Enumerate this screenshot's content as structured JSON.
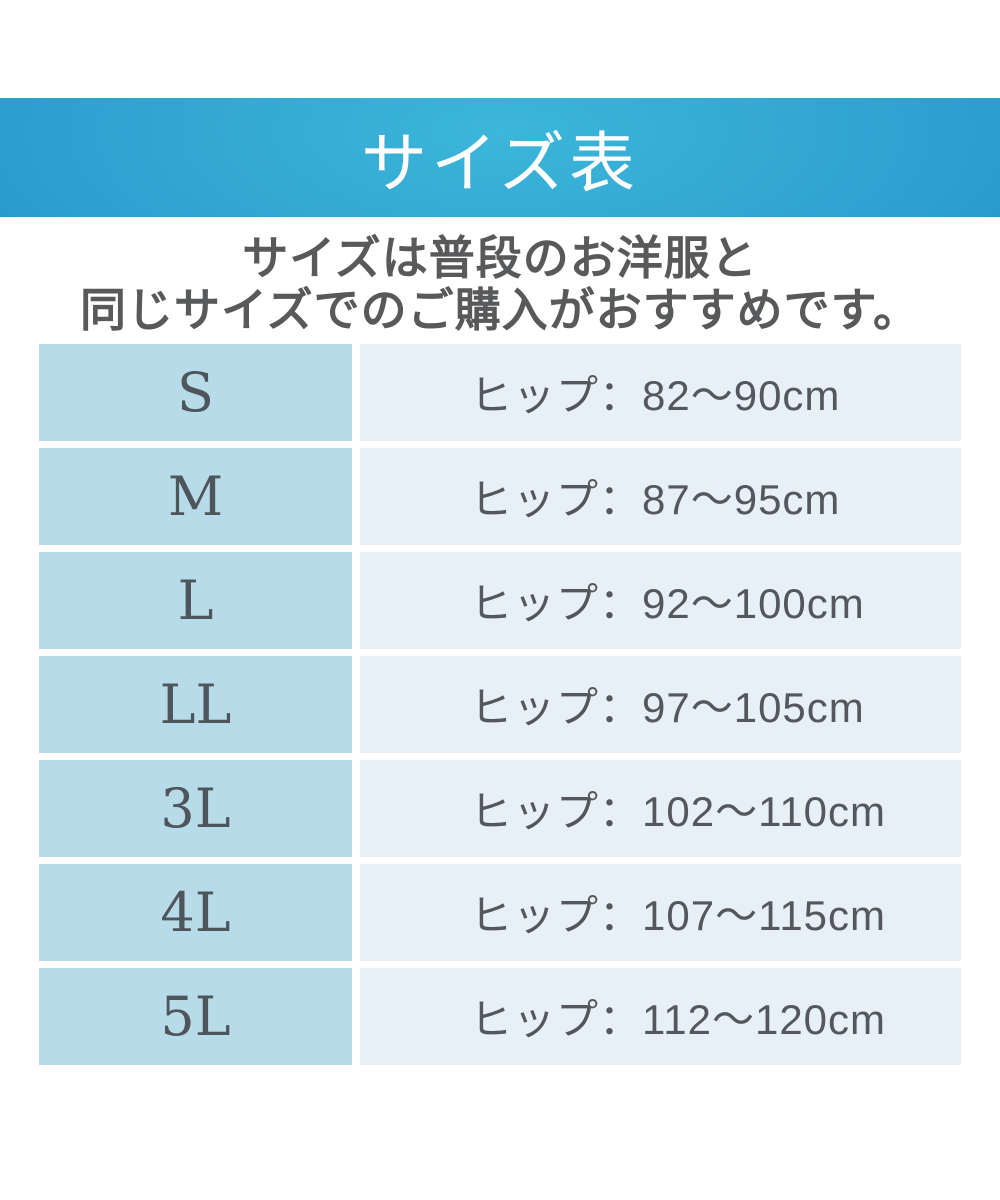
{
  "header": {
    "title": "サイズ表",
    "band_gradient_center": "#3cb6d9",
    "band_gradient_edge": "#2189c8",
    "text_color": "#ffffff"
  },
  "intro": {
    "line1": "サイズは普段のお洋服と",
    "line2": "同じサイズでのご購入がおすすめです。",
    "text_color": "#58595b"
  },
  "size_table": {
    "size_col_bg": "#b8dbe9",
    "value_col_bg": "#e7f0f7",
    "gutter_color": "#ffffff",
    "text_color": "#54585c",
    "rows": [
      {
        "size": "S",
        "hip": "ヒップ：82〜90cm"
      },
      {
        "size": "M",
        "hip": "ヒップ：87〜95cm"
      },
      {
        "size": "L",
        "hip": "ヒップ：92〜100cm"
      },
      {
        "size": "LL",
        "hip": "ヒップ：97〜105cm"
      },
      {
        "size": "3L",
        "hip": "ヒップ：102〜110cm"
      },
      {
        "size": "4L",
        "hip": "ヒップ：107〜115cm"
      },
      {
        "size": "5L",
        "hip": "ヒップ：112〜120cm"
      }
    ]
  }
}
